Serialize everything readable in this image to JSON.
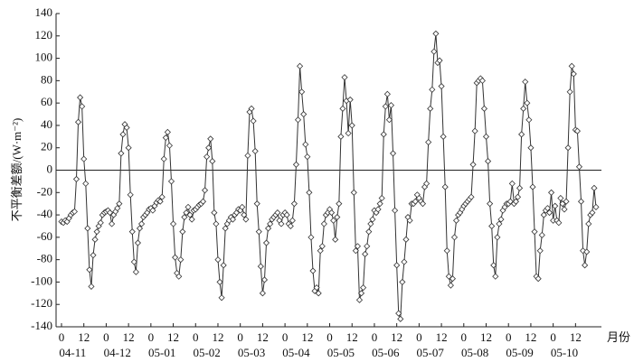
{
  "chart_data": {
    "type": "line",
    "y_label": "不平衡差额/(W·m⁻²)",
    "x_label": "月份",
    "groups": [
      "04-11",
      "04-12",
      "05-01",
      "05-02",
      "05-03",
      "05-04",
      "05-05",
      "05-06",
      "05-07",
      "05-08",
      "05-09",
      "05-10"
    ],
    "categories": [
      "0",
      null,
      null,
      null,
      null,
      null,
      null,
      null,
      null,
      null,
      null,
      null,
      "12",
      null,
      null,
      null,
      null,
      null,
      null,
      null,
      null,
      null,
      null,
      null,
      "0",
      null,
      null,
      null,
      null,
      null,
      null,
      null,
      null,
      null,
      null,
      null,
      "12",
      null,
      null,
      null,
      null,
      null,
      null,
      null,
      null,
      null,
      null,
      null,
      "0",
      null,
      null,
      null,
      null,
      null,
      null,
      null,
      null,
      null,
      null,
      null,
      "12",
      null,
      null,
      null,
      null,
      null,
      null,
      null,
      null,
      null,
      null,
      null,
      "0",
      null,
      null,
      null,
      null,
      null,
      null,
      null,
      null,
      null,
      null,
      null,
      "12",
      null,
      null,
      null,
      null,
      null,
      null,
      null,
      null,
      null,
      null,
      null,
      "0",
      null,
      null,
      null,
      null,
      null,
      null,
      null,
      null,
      null,
      null,
      null,
      "12",
      null,
      null,
      null,
      null,
      null,
      null,
      null,
      null,
      null,
      null,
      null,
      "0",
      null,
      null,
      null,
      null,
      null,
      null,
      null,
      null,
      null,
      null,
      null,
      "12",
      null,
      null,
      null,
      null,
      null,
      null,
      null,
      null,
      null,
      null,
      null,
      "0",
      null,
      null,
      null,
      null,
      null,
      null,
      null,
      null,
      null,
      null,
      null,
      "12",
      null,
      null,
      null,
      null,
      null,
      null,
      null,
      null,
      null,
      null,
      null,
      "0",
      null,
      null,
      null,
      null,
      null,
      null,
      null,
      null,
      null,
      null,
      null,
      "12",
      null,
      null,
      null,
      null,
      null,
      null,
      null,
      null,
      null,
      null,
      null,
      "0",
      null,
      null,
      null,
      null,
      null,
      null,
      null,
      null,
      null,
      null,
      null,
      "12",
      null,
      null,
      null,
      null,
      null,
      null,
      null,
      null,
      null,
      null,
      null,
      "0",
      null,
      null,
      null,
      null,
      null,
      null,
      null,
      null,
      null,
      null,
      null,
      "12",
      null,
      null,
      null,
      null,
      null,
      null,
      null,
      null,
      null,
      null,
      null,
      "0",
      null,
      null,
      null,
      null,
      null,
      null,
      null,
      null,
      null,
      null,
      null,
      "12",
      null,
      null,
      null,
      null,
      null,
      null,
      null,
      null,
      null,
      null,
      null,
      "0",
      null,
      null,
      null,
      null,
      null,
      null,
      null,
      null,
      null,
      null,
      null,
      "12",
      null,
      null,
      null,
      null,
      null,
      null,
      null,
      null,
      null,
      null,
      null
    ],
    "values": [
      -46,
      -47,
      -45,
      -46,
      -43,
      -40,
      -38,
      -37,
      -8,
      43,
      65,
      57,
      10,
      -12,
      -52,
      -89,
      -104,
      -76,
      -62,
      -55,
      -50,
      -47,
      -40,
      -38,
      -37,
      -36,
      -38,
      -48,
      -40,
      -37,
      -34,
      -30,
      15,
      32,
      41,
      38,
      20,
      -22,
      -55,
      -82,
      -91,
      -65,
      -52,
      -48,
      -42,
      -40,
      -38,
      -35,
      -34,
      -36,
      -32,
      -29,
      -27,
      -28,
      -24,
      10,
      29,
      34,
      22,
      -10,
      -48,
      -78,
      -92,
      -95,
      -80,
      -55,
      -42,
      -38,
      -33,
      -40,
      -44,
      -36,
      -35,
      -33,
      -31,
      -30,
      -28,
      -18,
      12,
      20,
      28,
      8,
      -38,
      -48,
      -80,
      -100,
      -114,
      -85,
      -52,
      -48,
      -45,
      -42,
      -44,
      -40,
      -38,
      -35,
      -36,
      -33,
      -40,
      -44,
      13,
      52,
      55,
      44,
      17,
      -30,
      -55,
      -86,
      -110,
      -98,
      -65,
      -52,
      -48,
      -44,
      -42,
      -40,
      -38,
      -45,
      -48,
      -40,
      -38,
      -40,
      -48,
      -50,
      -45,
      -30,
      5,
      45,
      93,
      70,
      50,
      23,
      12,
      -20,
      -60,
      -90,
      -108,
      -105,
      -110,
      -72,
      -68,
      -48,
      -40,
      -38,
      -35,
      -38,
      -45,
      -62,
      -42,
      -30,
      30,
      55,
      83,
      62,
      33,
      63,
      40,
      -20,
      -72,
      -68,
      -116,
      -110,
      -105,
      -75,
      -68,
      -55,
      -48,
      -44,
      -36,
      -38,
      -35,
      -30,
      -25,
      32,
      57,
      68,
      45,
      58,
      15,
      -36,
      -85,
      -128,
      -133,
      -100,
      -82,
      -62,
      -42,
      -45,
      -30,
      -30,
      -28,
      -22,
      -25,
      -28,
      -30,
      -15,
      -12,
      25,
      55,
      72,
      106,
      122,
      96,
      98,
      75,
      30,
      -15,
      -72,
      -95,
      -103,
      -97,
      -60,
      -45,
      -40,
      -38,
      -35,
      -32,
      -30,
      -28,
      -26,
      -24,
      5,
      35,
      78,
      80,
      82,
      80,
      55,
      30,
      8,
      -30,
      -50,
      -85,
      -95,
      -60,
      -48,
      -44,
      -36,
      -33,
      -30,
      -30,
      -28,
      -12,
      -30,
      -28,
      -24,
      -16,
      32,
      55,
      79,
      60,
      45,
      20,
      -15,
      -55,
      -95,
      -97,
      -72,
      -58,
      -40,
      -36,
      -34,
      -38,
      -20,
      -45,
      -32,
      -45,
      -47,
      -25,
      -30,
      -35,
      -28,
      20,
      70,
      93,
      86,
      36,
      35,
      3,
      -28,
      -72,
      -85,
      -73,
      -48,
      -40,
      -38,
      -16,
      -33
    ],
    "color": "#333333",
    "ylim": [
      -140,
      140
    ],
    "yticks": [
      -140,
      -120,
      -100,
      -80,
      -60,
      -40,
      -20,
      0,
      20,
      40,
      60,
      80,
      100,
      120,
      140
    ]
  }
}
